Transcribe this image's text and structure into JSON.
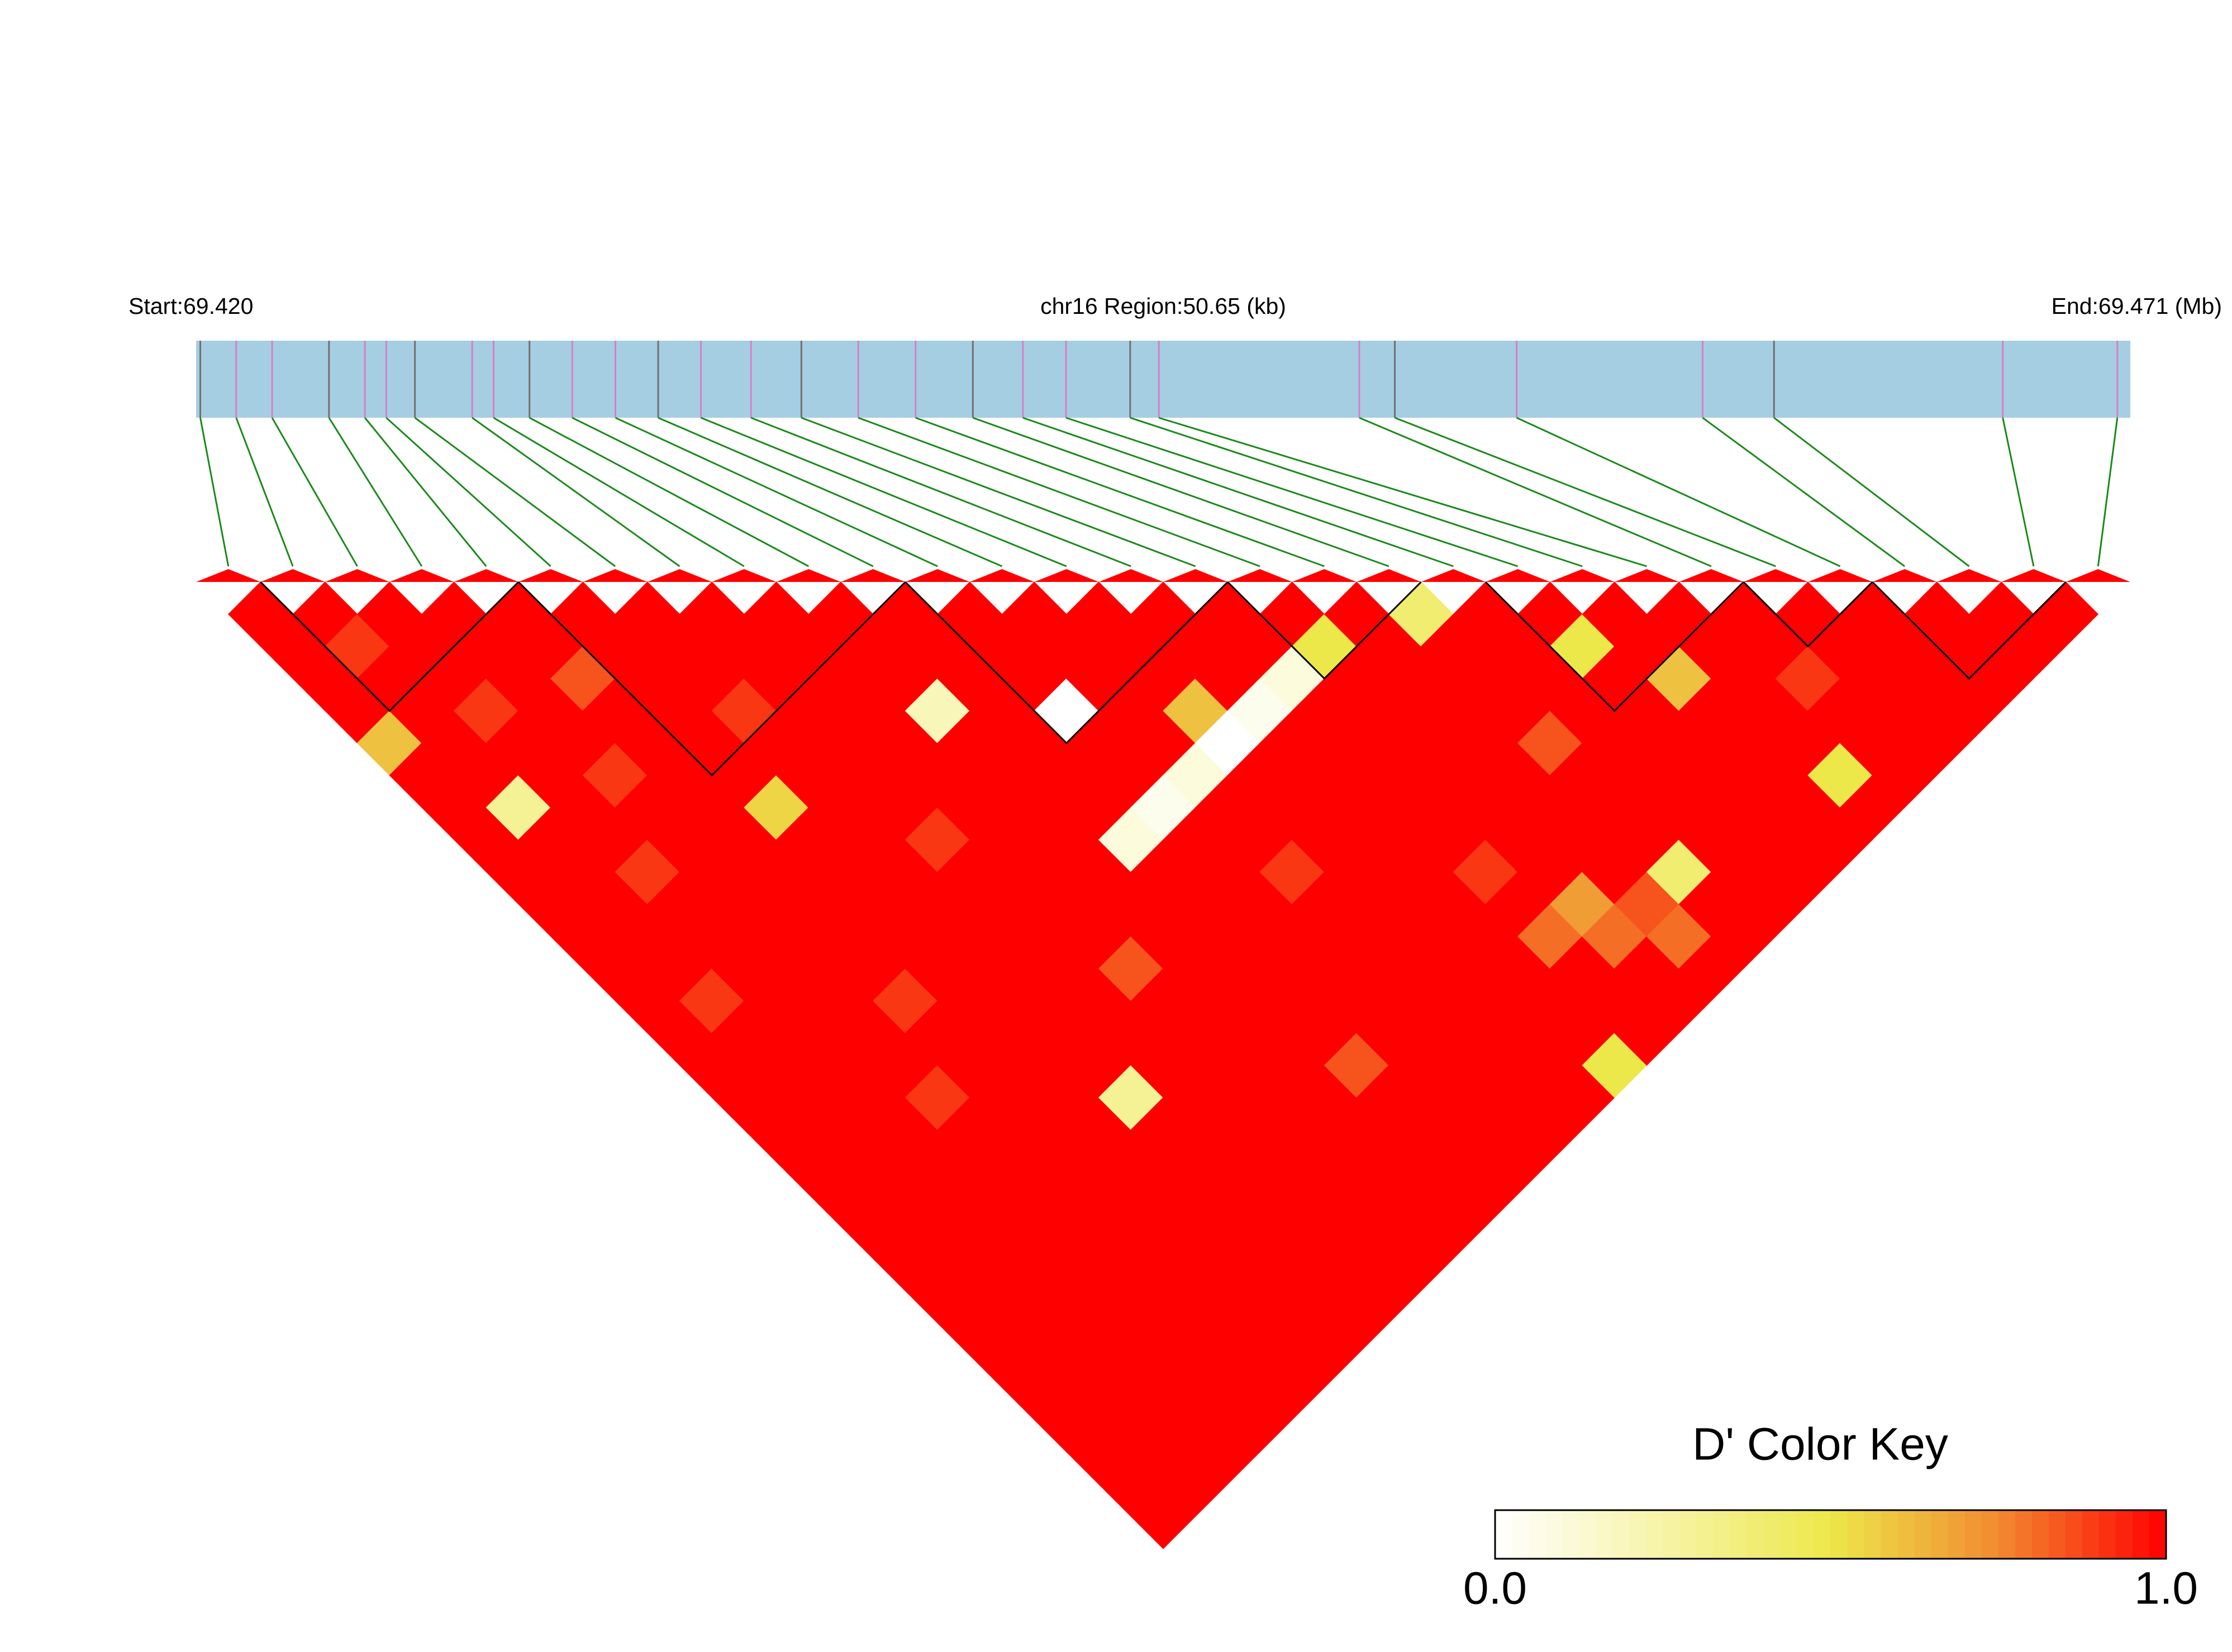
{
  "chart_data": {
    "type": "heatmap",
    "start_label": "Start:69.420",
    "region_label": "chr16 Region:50.65 (kb)",
    "end_label": "End:69.471 (Mb)",
    "xlim": [
      69.4205,
      69.47115
    ],
    "positions": [
      69.42061,
      69.42155,
      69.42249,
      69.42398,
      69.42492,
      69.42548,
      69.42623,
      69.42773,
      69.42829,
      69.42923,
      69.43035,
      69.43148,
      69.4326,
      69.43372,
      69.43503,
      69.43635,
      69.43784,
      69.43934,
      69.44084,
      69.44215,
      69.44328,
      69.44496,
      69.44571,
      69.45096,
      69.45189,
      69.45508,
      69.45995,
      69.46182,
      69.46781,
      69.47081
    ],
    "dprime": [
      [
        1
      ],
      [
        1,
        1
      ],
      [
        1,
        0.9,
        1
      ],
      [
        1,
        1,
        1,
        1
      ],
      [
        0.6,
        1,
        1,
        1,
        1
      ],
      [
        1,
        1,
        0.9,
        1,
        1,
        1
      ],
      [
        1,
        1,
        1,
        1,
        0.85,
        1,
        1
      ],
      [
        1,
        0.3,
        1,
        1,
        1,
        1,
        1,
        1
      ],
      [
        1,
        1,
        1,
        0.9,
        1,
        1,
        1,
        1,
        1
      ],
      [
        1,
        1,
        1,
        1,
        1,
        1,
        0.9,
        1,
        1,
        1
      ],
      [
        1,
        1,
        0.9,
        1,
        1,
        1,
        1,
        1,
        1,
        1,
        1
      ],
      [
        1,
        1,
        1,
        1,
        1,
        0.55,
        1,
        1,
        1,
        1,
        1,
        1
      ],
      [
        1,
        1,
        1,
        1,
        1,
        1,
        1,
        1,
        1,
        0.2,
        1,
        1,
        1
      ],
      [
        1,
        0.9,
        1,
        1,
        1,
        1,
        1,
        1,
        1,
        1,
        1,
        1,
        1,
        1
      ],
      [
        1,
        1,
        1,
        1,
        1,
        1,
        1,
        0.9,
        1,
        1,
        1,
        0,
        1,
        1,
        1
      ],
      [
        1,
        1,
        1,
        1,
        1,
        1,
        1,
        1,
        1,
        1,
        1,
        1,
        1,
        1,
        1,
        1
      ],
      [
        1,
        1,
        1,
        1,
        0.9,
        1,
        1,
        1,
        1,
        1,
        1,
        1,
        1,
        0.6,
        1,
        1,
        1
      ],
      [
        1,
        1,
        1,
        1,
        1,
        1,
        1,
        1,
        1,
        1,
        0.1,
        0.05,
        0.1,
        0,
        0.05,
        0.1,
        0.5,
        1
      ],
      [
        1,
        1,
        1,
        0.9,
        1,
        1,
        1,
        1,
        1,
        1,
        1,
        1,
        1,
        1,
        1,
        1,
        1,
        1,
        0.4
      ],
      [
        1,
        1,
        1,
        1,
        1,
        1,
        1,
        1,
        0.85,
        1,
        1,
        1,
        1,
        1,
        1,
        1,
        1,
        1,
        1,
        1
      ],
      [
        1,
        1,
        1,
        1,
        1,
        1,
        1,
        1,
        1,
        1,
        1,
        1,
        0.9,
        1,
        1,
        1,
        1,
        1,
        1,
        1,
        1
      ],
      [
        1,
        1,
        1,
        1,
        1,
        1,
        0.3,
        1,
        1,
        1,
        1,
        1,
        1,
        1,
        1,
        1,
        1,
        1,
        1,
        1,
        0.5,
        1
      ],
      [
        1,
        1,
        1,
        1,
        1,
        1,
        1,
        1,
        1,
        1,
        1,
        1,
        1,
        1,
        1,
        1,
        1,
        1,
        0.85,
        1,
        1,
        1,
        1
      ],
      [
        1,
        1,
        1,
        1,
        1,
        1,
        1,
        1,
        1,
        1,
        1,
        1,
        1,
        1,
        1,
        0.9,
        1,
        1,
        1,
        1,
        1,
        0.6,
        1,
        1
      ],
      [
        1,
        1,
        1,
        1,
        1,
        1,
        1,
        1,
        1,
        1,
        0.85,
        1,
        1,
        1,
        1,
        1,
        1,
        1,
        1,
        1,
        1,
        1,
        1,
        1,
        1
      ],
      [
        1,
        1,
        1,
        1,
        1,
        1,
        1,
        1,
        1,
        1,
        1,
        1,
        1,
        1,
        1,
        0.8,
        0.7,
        1,
        1,
        1,
        1,
        1,
        1,
        0.9,
        1,
        1
      ],
      [
        1,
        1,
        1,
        1,
        1,
        1,
        1,
        1,
        1,
        1,
        1,
        1,
        1,
        1,
        1,
        1,
        0.8,
        0.85,
        0.4,
        1,
        1,
        1,
        1,
        1,
        1,
        1,
        1
      ],
      [
        1,
        1,
        1,
        1,
        1,
        1,
        1,
        1,
        1,
        1,
        1,
        1,
        1,
        1,
        1,
        1,
        1,
        0.8,
        1,
        1,
        1,
        1,
        0.5,
        1,
        1,
        1,
        1,
        1
      ],
      [
        1,
        1,
        1,
        1,
        1,
        1,
        1,
        1,
        1,
        1,
        1,
        1,
        1,
        1,
        0.5,
        1,
        1,
        1,
        1,
        1,
        1,
        1,
        1,
        1,
        1,
        1,
        1,
        1,
        1
      ]
    ],
    "blocks": [
      [
        1,
        4
      ],
      [
        5,
        10
      ],
      [
        11,
        15
      ],
      [
        16,
        18
      ],
      [
        20,
        23
      ],
      [
        24,
        25
      ],
      [
        26,
        28
      ]
    ],
    "colors": [
      "#ffffff",
      "#f7f4a8",
      "#ece84a",
      "#f28a30",
      "#ff0000"
    ],
    "key": {
      "title": "D' Color Key",
      "range": [
        0,
        1
      ],
      "ticks": [
        {
          "value": 0,
          "label": "0.0"
        },
        {
          "value": 1,
          "label": "1.0"
        }
      ]
    }
  }
}
